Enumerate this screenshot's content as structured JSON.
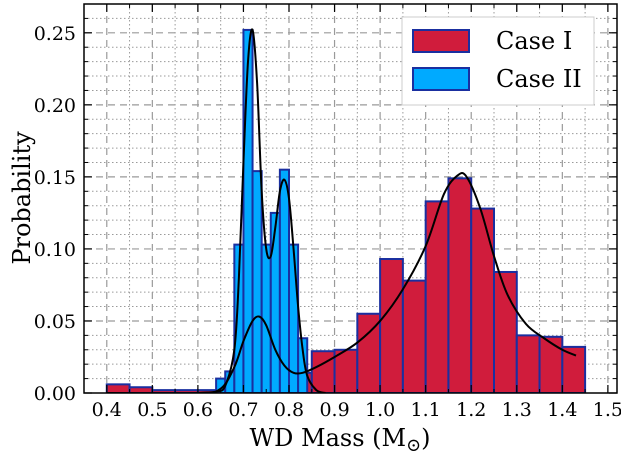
{
  "chart_data": {
    "type": "bar",
    "xlabel": "WD Mass (M",
    "xlabel_sub": "⊙",
    "xlabel_close": ")",
    "ylabel": "Probability",
    "xlim": [
      0.35,
      1.52
    ],
    "ylim": [
      0,
      0.27
    ],
    "x_ticks": [
      "0.4",
      "0.5",
      "0.6",
      "0.7",
      "0.8",
      "0.9",
      "1.0",
      "1.1",
      "1.2",
      "1.3",
      "1.4",
      "1.5"
    ],
    "y_ticks": [
      "0.00",
      "0.05",
      "0.10",
      "0.15",
      "0.20",
      "0.25"
    ],
    "grid": true,
    "legend_position": "top-right",
    "colors": {
      "case1_fill": "#d01c3c",
      "case2_fill": "#00aaff",
      "bar_edge": "#1a2fa0",
      "curve": "#000000",
      "grid": "#9a9a9a"
    },
    "series": [
      {
        "name": "Case I",
        "bins": [
          {
            "x0": 0.4,
            "x1": 0.45,
            "value": 0.006
          },
          {
            "x0": 0.45,
            "x1": 0.5,
            "value": 0.004
          },
          {
            "x0": 0.5,
            "x1": 0.55,
            "value": 0.002
          },
          {
            "x0": 0.55,
            "x1": 0.6,
            "value": 0.002
          },
          {
            "x0": 0.6,
            "x1": 0.65,
            "value": 0.002
          },
          {
            "x0": 0.65,
            "x1": 0.7,
            "value": 0.004
          },
          {
            "x0": 0.7,
            "x1": 0.75,
            "value": 0.048
          },
          {
            "x0": 0.75,
            "x1": 0.8,
            "value": 0.023
          },
          {
            "x0": 0.8,
            "x1": 0.85,
            "value": 0.014
          },
          {
            "x0": 0.85,
            "x1": 0.9,
            "value": 0.029
          },
          {
            "x0": 0.9,
            "x1": 0.95,
            "value": 0.03
          },
          {
            "x0": 0.95,
            "x1": 1.0,
            "value": 0.055
          },
          {
            "x0": 1.0,
            "x1": 1.05,
            "value": 0.093
          },
          {
            "x0": 1.05,
            "x1": 1.1,
            "value": 0.078
          },
          {
            "x0": 1.1,
            "x1": 1.15,
            "value": 0.133
          },
          {
            "x0": 1.15,
            "x1": 1.2,
            "value": 0.149
          },
          {
            "x0": 1.2,
            "x1": 1.25,
            "value": 0.128
          },
          {
            "x0": 1.25,
            "x1": 1.3,
            "value": 0.084
          },
          {
            "x0": 1.3,
            "x1": 1.35,
            "value": 0.04
          },
          {
            "x0": 1.35,
            "x1": 1.4,
            "value": 0.039
          },
          {
            "x0": 1.4,
            "x1": 1.45,
            "value": 0.032
          }
        ],
        "curve": [
          [
            0.4,
            0.0
          ],
          [
            0.6,
            0.0
          ],
          [
            0.65,
            0.003
          ],
          [
            0.68,
            0.018
          ],
          [
            0.7,
            0.036
          ],
          [
            0.72,
            0.05
          ],
          [
            0.735,
            0.053
          ],
          [
            0.75,
            0.047
          ],
          [
            0.77,
            0.03
          ],
          [
            0.79,
            0.019
          ],
          [
            0.81,
            0.014
          ],
          [
            0.83,
            0.014
          ],
          [
            0.86,
            0.018
          ],
          [
            0.9,
            0.025
          ],
          [
            0.95,
            0.035
          ],
          [
            1.0,
            0.05
          ],
          [
            1.05,
            0.072
          ],
          [
            1.1,
            0.102
          ],
          [
            1.14,
            0.138
          ],
          [
            1.17,
            0.151
          ],
          [
            1.19,
            0.15
          ],
          [
            1.22,
            0.128
          ],
          [
            1.25,
            0.095
          ],
          [
            1.28,
            0.068
          ],
          [
            1.32,
            0.048
          ],
          [
            1.36,
            0.038
          ],
          [
            1.4,
            0.03
          ],
          [
            1.43,
            0.026
          ]
        ]
      },
      {
        "name": "Case II",
        "bins": [
          {
            "x0": 0.64,
            "x1": 0.66,
            "value": 0.01
          },
          {
            "x0": 0.66,
            "x1": 0.68,
            "value": 0.015
          },
          {
            "x0": 0.68,
            "x1": 0.7,
            "value": 0.103
          },
          {
            "x0": 0.7,
            "x1": 0.72,
            "value": 0.252
          },
          {
            "x0": 0.72,
            "x1": 0.74,
            "value": 0.154
          },
          {
            "x0": 0.74,
            "x1": 0.76,
            "value": 0.103
          },
          {
            "x0": 0.76,
            "x1": 0.78,
            "value": 0.125
          },
          {
            "x0": 0.78,
            "x1": 0.8,
            "value": 0.155
          },
          {
            "x0": 0.8,
            "x1": 0.82,
            "value": 0.103
          },
          {
            "x0": 0.82,
            "x1": 0.84,
            "value": 0.038
          }
        ],
        "curve": [
          [
            0.6,
            0.0
          ],
          [
            0.64,
            0.001
          ],
          [
            0.66,
            0.005
          ],
          [
            0.68,
            0.03
          ],
          [
            0.69,
            0.08
          ],
          [
            0.7,
            0.16
          ],
          [
            0.71,
            0.23
          ],
          [
            0.72,
            0.252
          ],
          [
            0.73,
            0.215
          ],
          [
            0.74,
            0.14
          ],
          [
            0.75,
            0.1
          ],
          [
            0.76,
            0.095
          ],
          [
            0.77,
            0.115
          ],
          [
            0.78,
            0.14
          ],
          [
            0.79,
            0.148
          ],
          [
            0.8,
            0.135
          ],
          [
            0.81,
            0.1
          ],
          [
            0.82,
            0.06
          ],
          [
            0.83,
            0.03
          ],
          [
            0.84,
            0.012
          ],
          [
            0.86,
            0.002
          ],
          [
            0.88,
            0.0
          ]
        ]
      }
    ]
  }
}
